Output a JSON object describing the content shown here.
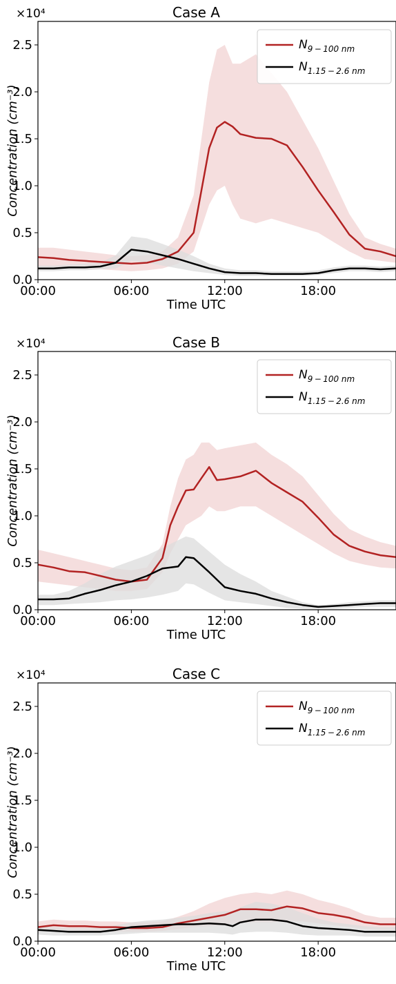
{
  "chart_data": [
    {
      "type": "area",
      "title": "Case A",
      "xlabel": "Time UTC",
      "ylabel": "Concentration (cm⁻³)",
      "y_multiplier": "×10⁴",
      "xlim": [
        0,
        23
      ],
      "ylim": [
        0,
        2.75
      ],
      "xticks": [
        "00:00",
        "06:00",
        "12:00",
        "18:00"
      ],
      "yticks": [
        "0.0",
        "0.5",
        "1.0",
        "1.5",
        "2.0",
        "2.5"
      ],
      "legend": "top-right",
      "series": [
        {
          "name": "N9 − 100 nm",
          "color": "#b22222",
          "band_color": "#f2d3d3",
          "x": [
            0,
            1,
            2,
            3,
            4,
            5,
            6,
            7,
            8,
            9,
            10,
            11,
            11.5,
            12,
            12.5,
            13,
            14,
            15,
            16,
            17,
            18,
            19,
            20,
            21,
            22,
            23
          ],
          "values": [
            0.24,
            0.23,
            0.21,
            0.2,
            0.19,
            0.18,
            0.17,
            0.18,
            0.22,
            0.3,
            0.5,
            1.4,
            1.62,
            1.68,
            1.63,
            1.55,
            1.51,
            1.5,
            1.43,
            1.2,
            0.95,
            0.72,
            0.48,
            0.33,
            0.3,
            0.25
          ],
          "lower": [
            0.14,
            0.13,
            0.12,
            0.11,
            0.11,
            0.1,
            0.09,
            0.1,
            0.12,
            0.17,
            0.3,
            0.8,
            0.95,
            1.0,
            0.8,
            0.65,
            0.6,
            0.65,
            0.6,
            0.55,
            0.5,
            0.4,
            0.3,
            0.22,
            0.2,
            0.18
          ],
          "upper": [
            0.34,
            0.34,
            0.32,
            0.3,
            0.28,
            0.26,
            0.25,
            0.26,
            0.3,
            0.45,
            0.9,
            2.1,
            2.45,
            2.5,
            2.3,
            2.3,
            2.4,
            2.2,
            2.0,
            1.7,
            1.4,
            1.05,
            0.7,
            0.45,
            0.38,
            0.33
          ]
        },
        {
          "name": "N1.15 − 2.6 nm",
          "color": "#000000",
          "band_color": "#dcdcdc",
          "x": [
            0,
            1,
            2,
            3,
            4,
            5,
            6,
            7,
            8,
            9,
            10,
            11,
            12,
            13,
            14,
            15,
            16,
            17,
            18,
            19,
            20,
            21,
            22,
            23
          ],
          "values": [
            0.12,
            0.12,
            0.13,
            0.13,
            0.14,
            0.18,
            0.32,
            0.3,
            0.26,
            0.22,
            0.17,
            0.12,
            0.08,
            0.07,
            0.07,
            0.06,
            0.06,
            0.06,
            0.07,
            0.1,
            0.12,
            0.12,
            0.11,
            0.12
          ],
          "lower": [
            0.09,
            0.09,
            0.1,
            0.1,
            0.11,
            0.12,
            0.2,
            0.18,
            0.15,
            0.12,
            0.09,
            0.07,
            0.05,
            0.04,
            0.04,
            0.04,
            0.04,
            0.04,
            0.05,
            0.07,
            0.09,
            0.09,
            0.08,
            0.09
          ],
          "upper": [
            0.15,
            0.15,
            0.16,
            0.17,
            0.18,
            0.26,
            0.46,
            0.44,
            0.38,
            0.32,
            0.25,
            0.17,
            0.12,
            0.1,
            0.1,
            0.09,
            0.09,
            0.09,
            0.1,
            0.13,
            0.15,
            0.15,
            0.14,
            0.15
          ]
        }
      ]
    },
    {
      "type": "area",
      "title": "Case B",
      "xlabel": "Time UTC",
      "ylabel": "Concentration (cm⁻³)",
      "y_multiplier": "×10⁴",
      "xlim": [
        0,
        23
      ],
      "ylim": [
        0,
        2.75
      ],
      "xticks": [
        "00:00",
        "06:00",
        "12:00",
        "18:00"
      ],
      "yticks": [
        "0.0",
        "0.5",
        "1.0",
        "1.5",
        "2.0",
        "2.5"
      ],
      "legend": "top-right",
      "series": [
        {
          "name": "N9 − 100 nm",
          "color": "#b22222",
          "band_color": "#f2d3d3",
          "x": [
            0,
            1,
            2,
            3,
            4,
            5,
            6,
            7,
            8,
            8.5,
            9,
            9.5,
            10,
            10.5,
            11,
            11.5,
            12,
            13,
            14,
            15,
            16,
            17,
            18,
            19,
            20,
            21,
            22,
            23
          ],
          "values": [
            0.48,
            0.45,
            0.41,
            0.4,
            0.36,
            0.32,
            0.3,
            0.32,
            0.55,
            0.9,
            1.1,
            1.27,
            1.28,
            1.4,
            1.52,
            1.38,
            1.39,
            1.42,
            1.48,
            1.35,
            1.25,
            1.15,
            0.98,
            0.8,
            0.68,
            0.62,
            0.58,
            0.56
          ],
          "lower": [
            0.3,
            0.28,
            0.26,
            0.24,
            0.22,
            0.2,
            0.2,
            0.22,
            0.4,
            0.6,
            0.75,
            0.9,
            0.95,
            1.0,
            1.1,
            1.05,
            1.05,
            1.1,
            1.1,
            1.0,
            0.9,
            0.8,
            0.7,
            0.6,
            0.52,
            0.48,
            0.45,
            0.44
          ],
          "upper": [
            0.64,
            0.6,
            0.56,
            0.52,
            0.48,
            0.44,
            0.42,
            0.45,
            0.7,
            1.1,
            1.4,
            1.6,
            1.65,
            1.78,
            1.78,
            1.7,
            1.72,
            1.75,
            1.78,
            1.65,
            1.55,
            1.42,
            1.22,
            1.02,
            0.86,
            0.78,
            0.72,
            0.68
          ]
        },
        {
          "name": "N1.15 − 2.6 nm",
          "color": "#000000",
          "band_color": "#dcdcdc",
          "x": [
            0,
            1,
            2,
            3,
            4,
            5,
            6,
            7,
            8,
            9,
            9.5,
            10,
            11,
            12,
            13,
            14,
            15,
            16,
            17,
            18,
            19,
            20,
            21,
            22,
            23
          ],
          "values": [
            0.11,
            0.11,
            0.12,
            0.17,
            0.21,
            0.26,
            0.3,
            0.36,
            0.44,
            0.46,
            0.56,
            0.55,
            0.4,
            0.24,
            0.2,
            0.17,
            0.12,
            0.08,
            0.05,
            0.03,
            0.04,
            0.05,
            0.06,
            0.07,
            0.07
          ],
          "lower": [
            0.05,
            0.05,
            0.06,
            0.07,
            0.08,
            0.1,
            0.11,
            0.13,
            0.16,
            0.2,
            0.28,
            0.27,
            0.18,
            0.1,
            0.08,
            0.06,
            0.04,
            0.02,
            0.01,
            0.01,
            0.01,
            0.02,
            0.03,
            0.03,
            0.03
          ],
          "upper": [
            0.16,
            0.16,
            0.2,
            0.28,
            0.38,
            0.46,
            0.52,
            0.58,
            0.66,
            0.74,
            0.78,
            0.76,
            0.62,
            0.48,
            0.38,
            0.3,
            0.2,
            0.14,
            0.08,
            0.05,
            0.06,
            0.08,
            0.09,
            0.1,
            0.1
          ]
        }
      ]
    },
    {
      "type": "area",
      "title": "Case C",
      "xlabel": "Time UTC",
      "ylabel": "Concentration (cm⁻³)",
      "y_multiplier": "×10⁴",
      "xlim": [
        0,
        23
      ],
      "ylim": [
        0,
        2.75
      ],
      "xticks": [
        "00:00",
        "06:00",
        "12:00",
        "18:00"
      ],
      "yticks": [
        "0.0",
        "0.5",
        "1.0",
        "1.5",
        "2.0",
        "2.5"
      ],
      "legend": "top-right",
      "series": [
        {
          "name": "N9 − 100 nm",
          "color": "#b22222",
          "band_color": "#f2d3d3",
          "x": [
            0,
            1,
            2,
            3,
            4,
            5,
            6,
            7,
            8,
            9,
            10,
            11,
            12,
            13,
            14,
            15,
            16,
            17,
            18,
            19,
            20,
            21,
            22,
            23
          ],
          "values": [
            0.15,
            0.17,
            0.16,
            0.16,
            0.15,
            0.15,
            0.14,
            0.14,
            0.15,
            0.19,
            0.22,
            0.25,
            0.28,
            0.34,
            0.34,
            0.33,
            0.37,
            0.35,
            0.3,
            0.28,
            0.25,
            0.2,
            0.18,
            0.18
          ],
          "lower": [
            0.1,
            0.12,
            0.11,
            0.11,
            0.1,
            0.1,
            0.1,
            0.1,
            0.11,
            0.13,
            0.15,
            0.16,
            0.17,
            0.2,
            0.2,
            0.2,
            0.22,
            0.21,
            0.19,
            0.17,
            0.15,
            0.13,
            0.12,
            0.12
          ],
          "upper": [
            0.21,
            0.23,
            0.22,
            0.22,
            0.21,
            0.21,
            0.2,
            0.2,
            0.21,
            0.26,
            0.32,
            0.4,
            0.46,
            0.5,
            0.52,
            0.5,
            0.54,
            0.5,
            0.44,
            0.4,
            0.35,
            0.28,
            0.25,
            0.25
          ]
        },
        {
          "name": "N1.15 − 2.6 nm",
          "color": "#000000",
          "band_color": "#dcdcdc",
          "x": [
            0,
            1,
            2,
            3,
            4,
            5,
            6,
            7,
            8,
            9,
            10,
            11,
            12,
            12.5,
            13,
            14,
            15,
            16,
            17,
            18,
            19,
            20,
            21,
            22,
            23
          ],
          "values": [
            0.12,
            0.11,
            0.1,
            0.1,
            0.1,
            0.12,
            0.15,
            0.16,
            0.17,
            0.18,
            0.18,
            0.19,
            0.18,
            0.16,
            0.2,
            0.23,
            0.23,
            0.21,
            0.16,
            0.14,
            0.13,
            0.12,
            0.1,
            0.1,
            0.1
          ],
          "lower": [
            0.07,
            0.06,
            0.06,
            0.06,
            0.06,
            0.07,
            0.08,
            0.09,
            0.09,
            0.09,
            0.09,
            0.09,
            0.08,
            0.07,
            0.09,
            0.1,
            0.1,
            0.09,
            0.07,
            0.06,
            0.06,
            0.06,
            0.05,
            0.05,
            0.05
          ],
          "upper": [
            0.16,
            0.15,
            0.14,
            0.14,
            0.14,
            0.17,
            0.2,
            0.22,
            0.23,
            0.25,
            0.27,
            0.3,
            0.32,
            0.32,
            0.36,
            0.42,
            0.4,
            0.36,
            0.3,
            0.24,
            0.2,
            0.18,
            0.16,
            0.15,
            0.15
          ]
        }
      ]
    }
  ]
}
